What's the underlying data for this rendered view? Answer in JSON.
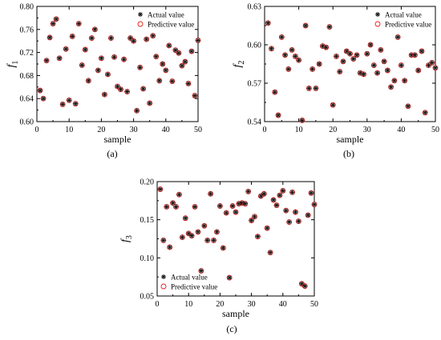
{
  "legend": {
    "actual_label": "Actual value",
    "predictive_label": "Predictive value",
    "actual_color": "#1a1a1a",
    "predictive_color": "#e8201c",
    "actual_marker": "asterisk",
    "predictive_marker": "open-circle"
  },
  "chart_data": [
    {
      "id": "a",
      "type": "scatter",
      "caption": "(a)",
      "xlabel": "sample",
      "ylabel": "f1",
      "ylabel_main": "f",
      "ylabel_sub": "1",
      "xlim": [
        0,
        50
      ],
      "ylim": [
        0.6,
        0.8
      ],
      "xticks": [
        0,
        10,
        20,
        30,
        40,
        50
      ],
      "yticks": [
        "0.60",
        "0.64",
        "0.68",
        "0.72",
        "0.76",
        "0.80"
      ],
      "legend_position": "top-right",
      "x": [
        1,
        2,
        3,
        4,
        5,
        6,
        7,
        8,
        9,
        10,
        11,
        12,
        13,
        14,
        15,
        16,
        17,
        18,
        19,
        20,
        21,
        22,
        23,
        24,
        25,
        26,
        27,
        28,
        29,
        30,
        31,
        32,
        33,
        34,
        35,
        36,
        37,
        38,
        39,
        40,
        41,
        42,
        43,
        44,
        45,
        46,
        47,
        48,
        49,
        50
      ],
      "actual": [
        0.654,
        0.64,
        0.706,
        0.746,
        0.77,
        0.778,
        0.71,
        0.63,
        0.726,
        0.637,
        0.748,
        0.631,
        0.77,
        0.698,
        0.725,
        0.671,
        0.745,
        0.76,
        0.689,
        0.71,
        0.647,
        0.682,
        0.745,
        0.712,
        0.661,
        0.656,
        0.708,
        0.652,
        0.745,
        0.74,
        0.619,
        0.694,
        0.657,
        0.743,
        0.632,
        0.749,
        0.713,
        0.671,
        0.7,
        0.689,
        0.732,
        0.67,
        0.724,
        0.719,
        0.697,
        0.704,
        0.666,
        0.722,
        0.645,
        0.741
      ],
      "predictive": [
        0.654,
        0.64,
        0.706,
        0.746,
        0.77,
        0.778,
        0.71,
        0.63,
        0.726,
        0.637,
        0.748,
        0.631,
        0.77,
        0.698,
        0.725,
        0.671,
        0.745,
        0.76,
        0.689,
        0.71,
        0.647,
        0.682,
        0.745,
        0.712,
        0.661,
        0.656,
        0.708,
        0.652,
        0.745,
        0.74,
        0.619,
        0.694,
        0.657,
        0.743,
        0.632,
        0.749,
        0.713,
        0.671,
        0.7,
        0.689,
        0.732,
        0.67,
        0.724,
        0.719,
        0.697,
        0.704,
        0.666,
        0.722,
        0.645,
        0.741
      ]
    },
    {
      "id": "b",
      "type": "scatter",
      "caption": "(b)",
      "xlabel": "sample",
      "ylabel": "f2",
      "ylabel_main": "f",
      "ylabel_sub": "2",
      "xlim": [
        0,
        50
      ],
      "ylim": [
        0.54,
        0.63
      ],
      "xticks": [
        0,
        10,
        20,
        30,
        40,
        50
      ],
      "yticks": [
        "0.54",
        "0.57",
        "0.60",
        "0.63"
      ],
      "legend_position": "top-right",
      "x": [
        1,
        2,
        3,
        4,
        5,
        6,
        7,
        8,
        9,
        10,
        11,
        12,
        13,
        14,
        15,
        16,
        17,
        18,
        19,
        20,
        21,
        22,
        23,
        24,
        25,
        26,
        27,
        28,
        29,
        30,
        31,
        32,
        33,
        34,
        35,
        36,
        37,
        38,
        39,
        40,
        41,
        42,
        43,
        44,
        45,
        46,
        47,
        48,
        49,
        50
      ],
      "actual": [
        0.617,
        0.597,
        0.563,
        0.545,
        0.606,
        0.592,
        0.581,
        0.596,
        0.591,
        0.588,
        0.541,
        0.615,
        0.566,
        0.581,
        0.566,
        0.585,
        0.599,
        0.598,
        0.614,
        0.553,
        0.591,
        0.579,
        0.587,
        0.595,
        0.593,
        0.589,
        0.592,
        0.578,
        0.577,
        0.593,
        0.6,
        0.584,
        0.578,
        0.596,
        0.587,
        0.58,
        0.567,
        0.572,
        0.606,
        0.584,
        0.572,
        0.552,
        0.592,
        0.592,
        0.58,
        0.595,
        0.547,
        0.584,
        0.586,
        0.582
      ],
      "predictive": [
        0.617,
        0.597,
        0.563,
        0.545,
        0.606,
        0.592,
        0.581,
        0.596,
        0.591,
        0.588,
        0.541,
        0.615,
        0.566,
        0.581,
        0.566,
        0.585,
        0.599,
        0.598,
        0.614,
        0.553,
        0.591,
        0.579,
        0.587,
        0.595,
        0.593,
        0.589,
        0.592,
        0.578,
        0.577,
        0.593,
        0.6,
        0.584,
        0.578,
        0.596,
        0.587,
        0.58,
        0.567,
        0.572,
        0.606,
        0.584,
        0.572,
        0.552,
        0.592,
        0.592,
        0.58,
        0.595,
        0.547,
        0.584,
        0.586,
        0.582
      ]
    },
    {
      "id": "c",
      "type": "scatter",
      "caption": "(c)",
      "xlabel": "sample",
      "ylabel": "f3",
      "ylabel_main": "f",
      "ylabel_sub": "3",
      "xlim": [
        0,
        50
      ],
      "ylim": [
        0.05,
        0.2
      ],
      "xticks": [
        0,
        10,
        20,
        30,
        40,
        50
      ],
      "yticks": [
        "0.05",
        "0.10",
        "0.15",
        "0.20"
      ],
      "legend_position": "bottom-left",
      "x": [
        1,
        2,
        3,
        4,
        5,
        6,
        7,
        8,
        9,
        10,
        11,
        12,
        13,
        14,
        15,
        16,
        17,
        18,
        19,
        20,
        21,
        22,
        23,
        24,
        25,
        26,
        27,
        28,
        29,
        30,
        31,
        32,
        33,
        34,
        35,
        36,
        37,
        38,
        39,
        40,
        41,
        42,
        43,
        44,
        45,
        46,
        47,
        48,
        49,
        50
      ],
      "actual": [
        0.19,
        0.123,
        0.167,
        0.114,
        0.172,
        0.167,
        0.183,
        0.127,
        0.152,
        0.132,
        0.129,
        0.167,
        0.134,
        0.083,
        0.142,
        0.123,
        0.184,
        0.123,
        0.134,
        0.168,
        0.113,
        0.159,
        0.074,
        0.168,
        0.16,
        0.171,
        0.172,
        0.171,
        0.187,
        0.149,
        0.154,
        0.128,
        0.181,
        0.184,
        0.139,
        0.107,
        0.176,
        0.169,
        0.182,
        0.188,
        0.162,
        0.147,
        0.186,
        0.16,
        0.148,
        0.066,
        0.063,
        0.156,
        0.185,
        0.17
      ],
      "predictive": [
        0.19,
        0.123,
        0.167,
        0.114,
        0.172,
        0.167,
        0.183,
        0.127,
        0.152,
        0.132,
        0.129,
        0.167,
        0.134,
        0.083,
        0.142,
        0.123,
        0.184,
        0.123,
        0.134,
        0.168,
        0.113,
        0.159,
        0.074,
        0.168,
        0.16,
        0.171,
        0.172,
        0.171,
        0.187,
        0.149,
        0.154,
        0.128,
        0.181,
        0.184,
        0.139,
        0.107,
        0.176,
        0.169,
        0.182,
        0.188,
        0.162,
        0.147,
        0.186,
        0.16,
        0.148,
        0.066,
        0.063,
        0.156,
        0.185,
        0.17
      ]
    }
  ]
}
